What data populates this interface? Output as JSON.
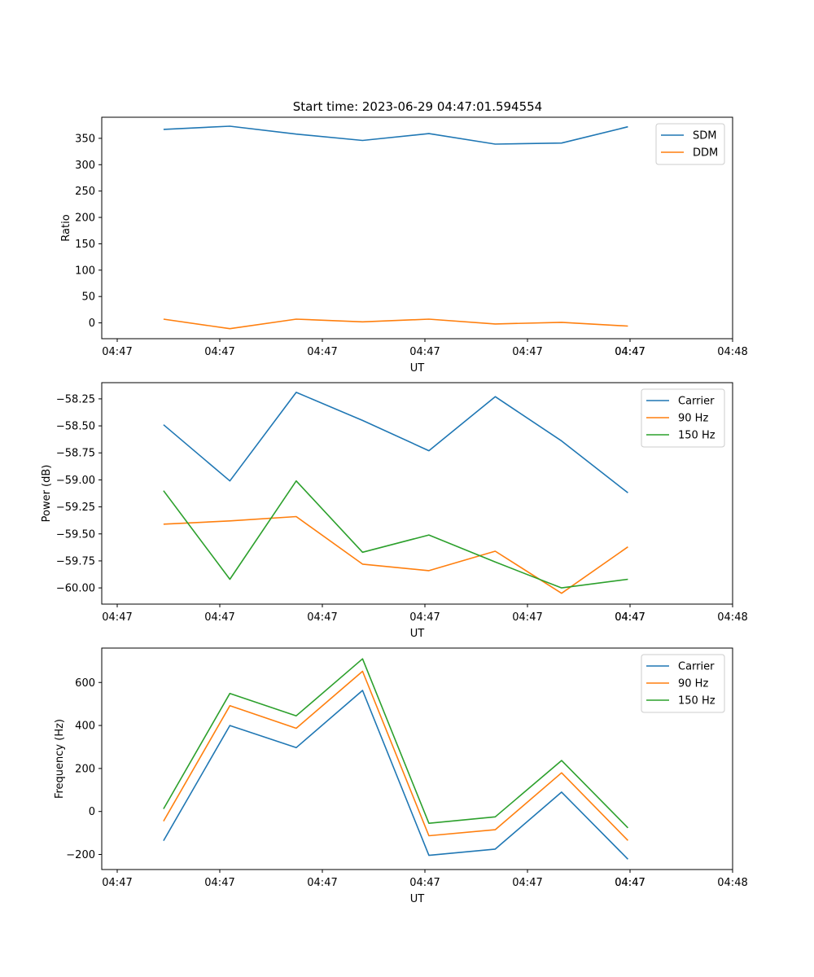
{
  "figure_title": "Start time: 2023-06-29 04:47:01.594554",
  "colors": {
    "c0": "#1f77b4",
    "c1": "#ff7f0e",
    "c2": "#2ca02c"
  },
  "chart_data": [
    {
      "type": "line",
      "title": "Start time: 2023-06-29 04:47:01.594554",
      "xlabel": "UT",
      "ylabel": "Ratio",
      "x_ticks": [
        "04:47",
        "04:47",
        "04:47",
        "04:47",
        "04:47",
        "04:47",
        "04:47",
        "04:48"
      ],
      "x_points": [
        1,
        2,
        3,
        4,
        5,
        6,
        7,
        8
      ],
      "xlim": [
        -0.35,
        9.35
      ],
      "ylim": [
        -30,
        390
      ],
      "y_ticks": [
        0,
        50,
        100,
        150,
        200,
        250,
        300,
        350
      ],
      "grid": false,
      "legend": "top-right",
      "series": [
        {
          "name": "SDM",
          "color": "#1f77b4",
          "values": [
            367,
            373,
            358,
            346,
            359,
            339,
            341,
            372
          ]
        },
        {
          "name": "DDM",
          "color": "#ff7f0e",
          "values": [
            7,
            -11,
            7,
            2,
            7,
            -2,
            1,
            -6
          ]
        }
      ]
    },
    {
      "type": "line",
      "title": "",
      "xlabel": "UT",
      "ylabel": "Power (dB)",
      "x_ticks": [
        "04:47",
        "04:47",
        "04:47",
        "04:47",
        "04:47",
        "04:47",
        "04:47",
        "04:48"
      ],
      "x_points": [
        1,
        2,
        3,
        4,
        5,
        6,
        7,
        8
      ],
      "xlim": [
        -0.35,
        9.35
      ],
      "ylim": [
        -60.15,
        -58.1
      ],
      "y_ticks": [
        -58.25,
        -58.5,
        -58.75,
        -59.0,
        -59.25,
        -59.5,
        -59.75,
        -60.0
      ],
      "y_tick_labels": [
        "−58.25",
        "−58.50",
        "−58.75",
        "−59.00",
        "−59.25",
        "−59.50",
        "−59.75",
        "−60.00"
      ],
      "grid": false,
      "legend": "top-right",
      "series": [
        {
          "name": "Carrier",
          "color": "#1f77b4",
          "values": [
            -58.49,
            -59.01,
            -58.19,
            -58.45,
            -58.73,
            -58.23,
            -58.64,
            -59.12
          ]
        },
        {
          "name": "90 Hz",
          "color": "#ff7f0e",
          "values": [
            -59.41,
            -59.38,
            -59.34,
            -59.78,
            -59.84,
            -59.66,
            -60.05,
            -59.62
          ]
        },
        {
          "name": "150 Hz",
          "color": "#2ca02c",
          "values": [
            -59.1,
            -59.92,
            -59.01,
            -59.67,
            -59.51,
            -59.76,
            -60.0,
            -59.92
          ]
        }
      ]
    },
    {
      "type": "line",
      "title": "",
      "xlabel": "UT",
      "ylabel": "Frequency (Hz)",
      "x_ticks": [
        "04:47",
        "04:47",
        "04:47",
        "04:47",
        "04:47",
        "04:47",
        "04:47",
        "04:48"
      ],
      "x_points": [
        1,
        2,
        3,
        4,
        5,
        6,
        7,
        8
      ],
      "xlim": [
        -0.35,
        9.35
      ],
      "ylim": [
        -270,
        760
      ],
      "y_ticks": [
        600,
        400,
        200,
        0,
        -200
      ],
      "y_tick_labels": [
        "600",
        "400",
        "200",
        "0",
        "−200"
      ],
      "grid": false,
      "legend": "top-right",
      "series": [
        {
          "name": "Carrier",
          "color": "#1f77b4",
          "values": [
            -136,
            400,
            297,
            563,
            -204,
            -175,
            90,
            -222
          ]
        },
        {
          "name": "90 Hz",
          "color": "#ff7f0e",
          "values": [
            -45,
            492,
            387,
            652,
            -113,
            -85,
            180,
            -135
          ]
        },
        {
          "name": "150 Hz",
          "color": "#2ca02c",
          "values": [
            12,
            549,
            445,
            710,
            -55,
            -25,
            237,
            -76
          ]
        }
      ]
    }
  ]
}
